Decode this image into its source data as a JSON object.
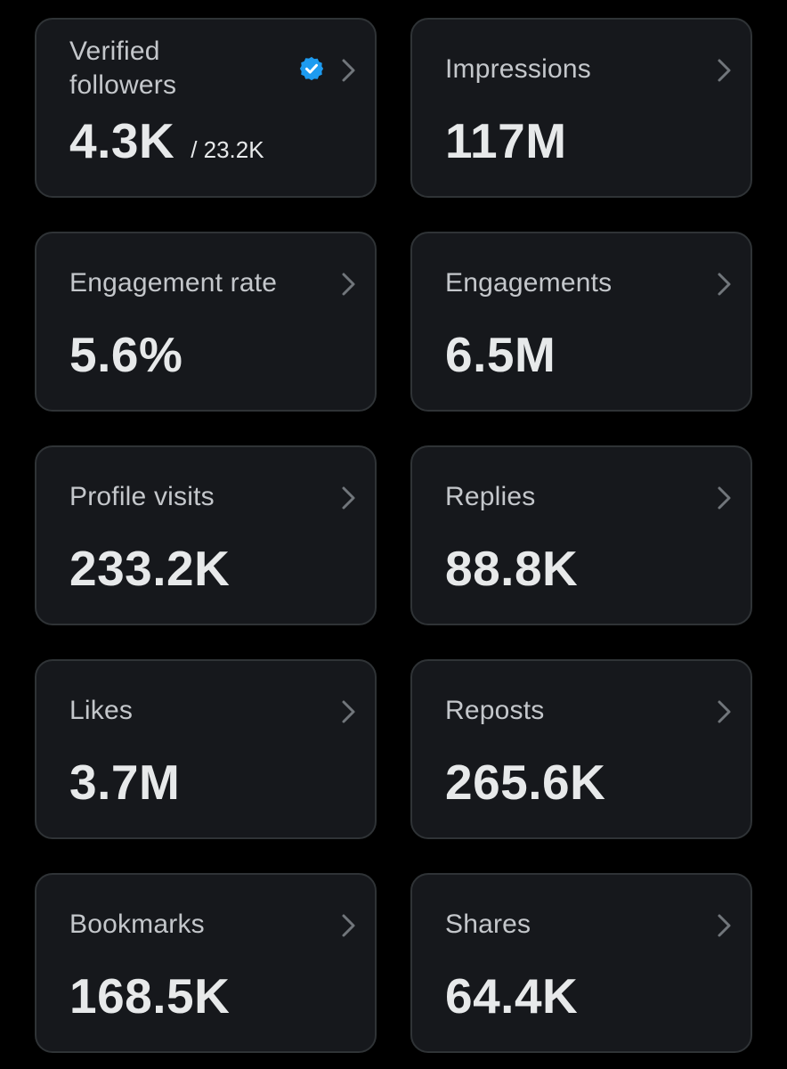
{
  "cards": [
    {
      "label": "Verified followers",
      "value": "4.3K",
      "subvalue": "/ 23.2K",
      "badge_icon": "verified-badge-icon"
    },
    {
      "label": "Impressions",
      "value": "117M"
    },
    {
      "label": "Engagement rate",
      "value": "5.6%"
    },
    {
      "label": "Engagements",
      "value": "6.5M"
    },
    {
      "label": "Profile visits",
      "value": "233.2K"
    },
    {
      "label": "Replies",
      "value": "88.8K"
    },
    {
      "label": "Likes",
      "value": "3.7M"
    },
    {
      "label": "Reposts",
      "value": "265.6K"
    },
    {
      "label": "Bookmarks",
      "value": "168.5K"
    },
    {
      "label": "Shares",
      "value": "64.4K"
    }
  ],
  "colors": {
    "background": "#000000",
    "card_background": "#16181c",
    "card_border": "#2f3336",
    "label_text": "#c4c7cb",
    "value_text": "#e7e9ea",
    "chevron": "#71767b",
    "verified_badge": "#1d9bf0"
  },
  "icons": {
    "chevron": "chevron-right-icon",
    "verified": "verified-badge-icon"
  }
}
